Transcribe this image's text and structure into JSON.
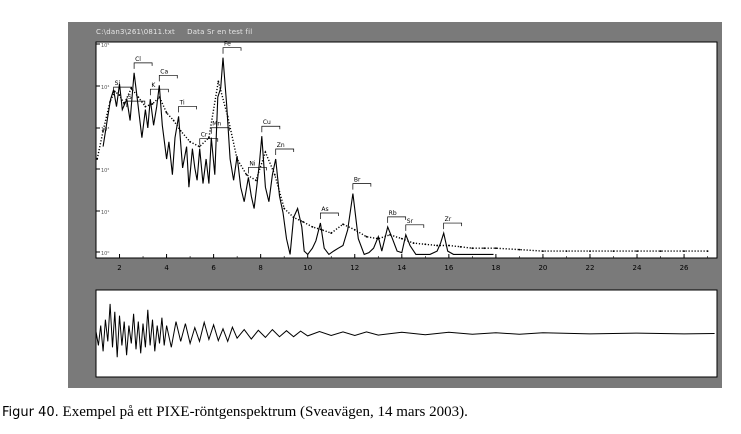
{
  "window": {
    "title": "C:\\dan3\\261\\0811.txt     Data Sr en test fil"
  },
  "caption": {
    "figure_label": "Figur 40.",
    "text": " Exempel på ett PIXE-röntgenspektrum (Sveavägen, 14 mars 2003)."
  },
  "colors": {
    "frame": "#7a7a7a",
    "plot_bg": "#ffffff",
    "line": "#000000",
    "fit": "#000000"
  },
  "chart_data": [
    {
      "type": "line",
      "title": "",
      "xlabel": "",
      "ylabel": "",
      "y_scale": "log",
      "xlim": [
        1,
        27.4
      ],
      "ylim": [
        0.8,
        900
      ],
      "x_ticks": [
        2,
        4,
        6,
        8,
        10,
        12,
        14,
        16,
        18,
        20,
        22,
        24,
        26
      ],
      "x_tick_labels": [
        "2",
        "4",
        "6",
        "8",
        "10",
        "12",
        "14",
        "16",
        "18",
        "20",
        "22",
        "24",
        "26"
      ],
      "y_tick_labels": [
        "10⁰",
        "10¹",
        "10²",
        "10³",
        "10⁴",
        "10⁵"
      ],
      "grid": false,
      "element_labels": [
        {
          "label": "Si",
          "x": 1.75,
          "y": 150
        },
        {
          "label": "S",
          "x": 2.31,
          "y": 95
        },
        {
          "label": "Cl",
          "x": 2.62,
          "y": 330
        },
        {
          "label": "K",
          "x": 3.31,
          "y": 140
        },
        {
          "label": "Ca",
          "x": 3.69,
          "y": 220
        },
        {
          "label": "Ti",
          "x": 4.51,
          "y": 80
        },
        {
          "label": "Cr",
          "x": 5.41,
          "y": 28
        },
        {
          "label": "Mn",
          "x": 5.9,
          "y": 40
        },
        {
          "label": "Fe",
          "x": 6.4,
          "y": 540
        },
        {
          "label": "Ni",
          "x": 7.48,
          "y": 11
        },
        {
          "label": "Cu",
          "x": 8.05,
          "y": 42
        },
        {
          "label": "Zn",
          "x": 8.64,
          "y": 20
        },
        {
          "label": "As",
          "x": 10.54,
          "y": 2.5
        },
        {
          "label": "Br",
          "x": 11.92,
          "y": 6.5
        },
        {
          "label": "Rb",
          "x": 13.4,
          "y": 2.2
        },
        {
          "label": "Sr",
          "x": 14.17,
          "y": 1.7
        },
        {
          "label": "Zr",
          "x": 15.78,
          "y": 1.8
        }
      ],
      "series": [
        {
          "style": "dotted",
          "x": [
            1.05,
            1.3,
            1.6,
            1.8,
            2.0,
            2.2,
            2.5,
            2.8,
            3.1,
            3.4,
            3.7,
            4.0,
            4.3,
            4.6,
            5.0,
            5.4,
            5.8,
            6.2,
            6.6,
            7.0,
            7.4,
            7.8,
            8.2,
            8.6,
            9.0,
            9.4,
            9.8,
            10.2,
            10.6,
            11.0,
            11.5,
            12.0,
            12.5,
            13.0,
            13.5,
            14.0,
            14.5,
            15.0,
            15.5,
            16.0,
            16.5,
            17.0,
            17.5,
            18.0,
            19.0,
            20.0,
            21.0,
            22.0,
            23.0,
            24.0,
            25.0,
            26.0,
            27.0
          ],
          "y": [
            20,
            50,
            130,
            180,
            160,
            120,
            200,
            150,
            110,
            120,
            150,
            90,
            70,
            50,
            35,
            30,
            40,
            250,
            80,
            20,
            12,
            10,
            25,
            12,
            4,
            3,
            2.6,
            2.2,
            2.0,
            1.8,
            2.4,
            2.0,
            1.6,
            1.5,
            1.7,
            1.5,
            1.3,
            1.25,
            1.2,
            1.2,
            1.15,
            1.1,
            1.1,
            1.1,
            1.05,
            1.0,
            1.0,
            1.0,
            1.0,
            1.0,
            1.0,
            1.0,
            1.0
          ]
        },
        {
          "style": "solid",
          "x": [
            1.3,
            1.5,
            1.62,
            1.75,
            1.87,
            2.0,
            2.12,
            2.31,
            2.45,
            2.62,
            2.78,
            2.95,
            3.1,
            3.2,
            3.31,
            3.45,
            3.58,
            3.69,
            3.82,
            4.0,
            4.1,
            4.25,
            4.36,
            4.51,
            4.68,
            4.85,
            4.95,
            5.1,
            5.2,
            5.3,
            5.41,
            5.55,
            5.68,
            5.8,
            5.9,
            6.05,
            6.18,
            6.3,
            6.4,
            6.55,
            6.7,
            6.85,
            7.0,
            7.15,
            7.3,
            7.48,
            7.6,
            7.72,
            7.85,
            7.95,
            8.05,
            8.2,
            8.35,
            8.5,
            8.64,
            8.8,
            8.95,
            9.1,
            9.25,
            9.4,
            9.57,
            9.75,
            9.85,
            10.0,
            10.2,
            10.35,
            10.54,
            10.7,
            10.9,
            11.1,
            11.3,
            11.5,
            11.7,
            11.92,
            12.15,
            12.4,
            12.6,
            12.8,
            13.0,
            13.15,
            13.4,
            13.6,
            13.8,
            14.0,
            14.17,
            14.35,
            14.6,
            14.9,
            15.2,
            15.5,
            15.65,
            15.78,
            15.95,
            16.2,
            16.6,
            17.0,
            17.4,
            17.9
          ],
          "y": [
            30,
            80,
            140,
            190,
            110,
            230,
            100,
            140,
            70,
            330,
            120,
            40,
            100,
            55,
            140,
            60,
            110,
            220,
            60,
            20,
            35,
            12,
            40,
            80,
            15,
            30,
            8,
            28,
            15,
            10,
            28,
            9,
            20,
            9,
            40,
            12,
            150,
            200,
            540,
            120,
            20,
            10,
            22,
            8,
            5,
            11,
            6,
            4,
            9,
            18,
            42,
            8,
            5,
            12,
            20,
            6,
            3.5,
            1.5,
            0.9,
            3,
            4,
            2.2,
            1.0,
            0.9,
            1.1,
            1.4,
            2.5,
            1.1,
            0.9,
            1.0,
            1.1,
            1.2,
            2.0,
            6.5,
            1.5,
            0.9,
            0.95,
            1.1,
            1.6,
            1.0,
            2.2,
            1.5,
            1.0,
            0.95,
            1.7,
            1.2,
            0.9,
            0.9,
            0.9,
            1.0,
            1.3,
            1.8,
            1.0,
            0.9,
            0.9,
            0.9,
            0.9,
            0.9
          ]
        }
      ]
    },
    {
      "type": "line",
      "title": "",
      "xlabel": "",
      "ylabel": "",
      "xlim": [
        1,
        27.4
      ],
      "ylim": [
        -1,
        1
      ],
      "grid": false,
      "series": [
        {
          "style": "solid",
          "x": [
            1.0,
            1.1,
            1.2,
            1.3,
            1.4,
            1.5,
            1.6,
            1.7,
            1.8,
            1.9,
            2.0,
            2.1,
            2.2,
            2.3,
            2.4,
            2.5,
            2.6,
            2.7,
            2.8,
            2.9,
            3.0,
            3.1,
            3.2,
            3.3,
            3.4,
            3.5,
            3.6,
            3.7,
            3.8,
            3.9,
            4.0,
            4.2,
            4.4,
            4.6,
            4.8,
            5.0,
            5.2,
            5.4,
            5.6,
            5.8,
            6.0,
            6.2,
            6.4,
            6.6,
            6.8,
            7.0,
            7.3,
            7.6,
            7.9,
            8.2,
            8.5,
            8.8,
            9.1,
            9.4,
            9.7,
            10.0,
            10.5,
            11.0,
            11.5,
            12.0,
            12.5,
            13.0,
            14.0,
            15.0,
            16.0,
            17.0,
            18.0,
            19.0,
            20.0,
            22.0,
            24.0,
            26.0,
            27.3
          ],
          "y": [
            0.05,
            -0.3,
            0.2,
            -0.45,
            0.35,
            -0.2,
            0.75,
            -0.35,
            0.55,
            -0.6,
            0.45,
            -0.3,
            0.3,
            -0.55,
            0.2,
            -0.25,
            0.5,
            -0.4,
            0.3,
            -0.5,
            0.25,
            -0.35,
            0.6,
            -0.3,
            0.35,
            -0.45,
            0.2,
            -0.25,
            0.4,
            -0.3,
            0.2,
            -0.35,
            0.3,
            -0.2,
            0.25,
            -0.25,
            0.15,
            -0.2,
            0.28,
            -0.15,
            0.22,
            -0.18,
            0.12,
            -0.2,
            0.16,
            -0.12,
            0.1,
            -0.14,
            0.08,
            -0.1,
            0.1,
            -0.08,
            0.07,
            -0.08,
            0.06,
            -0.06,
            0.05,
            -0.05,
            0.04,
            -0.05,
            0.04,
            -0.04,
            0.03,
            -0.03,
            0.03,
            -0.02,
            0.02,
            -0.02,
            0.02,
            -0.01,
            0.01,
            -0.01,
            0.0
          ]
        }
      ]
    }
  ]
}
